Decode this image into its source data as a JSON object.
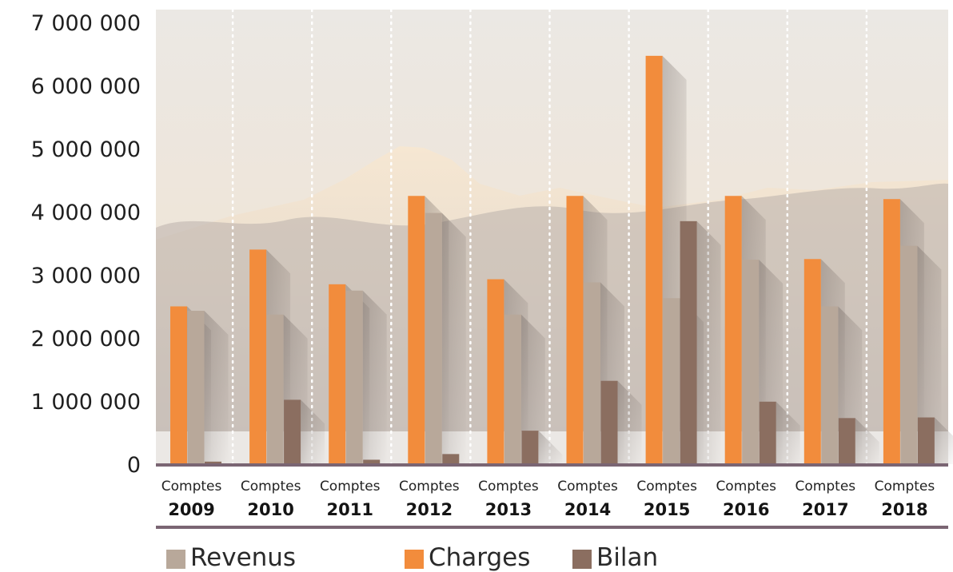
{
  "chart_data": {
    "type": "bar",
    "categories": [
      {
        "line1": "Comptes",
        "line2": "2009"
      },
      {
        "line1": "Comptes",
        "line2": "2010"
      },
      {
        "line1": "Comptes",
        "line2": "2011"
      },
      {
        "line1": "Comptes",
        "line2": "2012"
      },
      {
        "line1": "Comptes",
        "line2": "2013"
      },
      {
        "line1": "Comptes",
        "line2": "2014"
      },
      {
        "line1": "Comptes",
        "line2": "2015"
      },
      {
        "line1": "Comptes",
        "line2": "2016"
      },
      {
        "line1": "Comptes",
        "line2": "2017"
      },
      {
        "line1": "Comptes",
        "line2": "2018"
      }
    ],
    "series": [
      {
        "name": "Charges",
        "color": "#F28C3C",
        "values": [
          2500000,
          3400000,
          2850000,
          4250000,
          2930000,
          4250000,
          6470000,
          4250000,
          3250000,
          4200000
        ]
      },
      {
        "name": "Revenus",
        "color": "#B8A89A",
        "values": [
          2430000,
          2370000,
          2750000,
          3980000,
          2370000,
          2880000,
          2630000,
          3240000,
          2500000,
          3460000
        ]
      },
      {
        "name": "Bilan",
        "color": "#8B6E60",
        "values": [
          40000,
          1020000,
          70000,
          160000,
          530000,
          1320000,
          3850000,
          990000,
          730000,
          740000
        ]
      }
    ],
    "yticks": [
      "0",
      "1 000 000",
      "2 000 000",
      "3 000 000",
      "4 000 000",
      "5 000 000",
      "6 000 000",
      "7 000 000"
    ],
    "ylim": [
      0,
      7000000
    ],
    "grid": "vertical-dotted",
    "legend_position": "bottom-left",
    "legend_order": [
      "Revenus",
      "Charges",
      "Bilan"
    ],
    "background_image": "snowy-mountain-landscape",
    "axis_color": "#7A6573"
  }
}
